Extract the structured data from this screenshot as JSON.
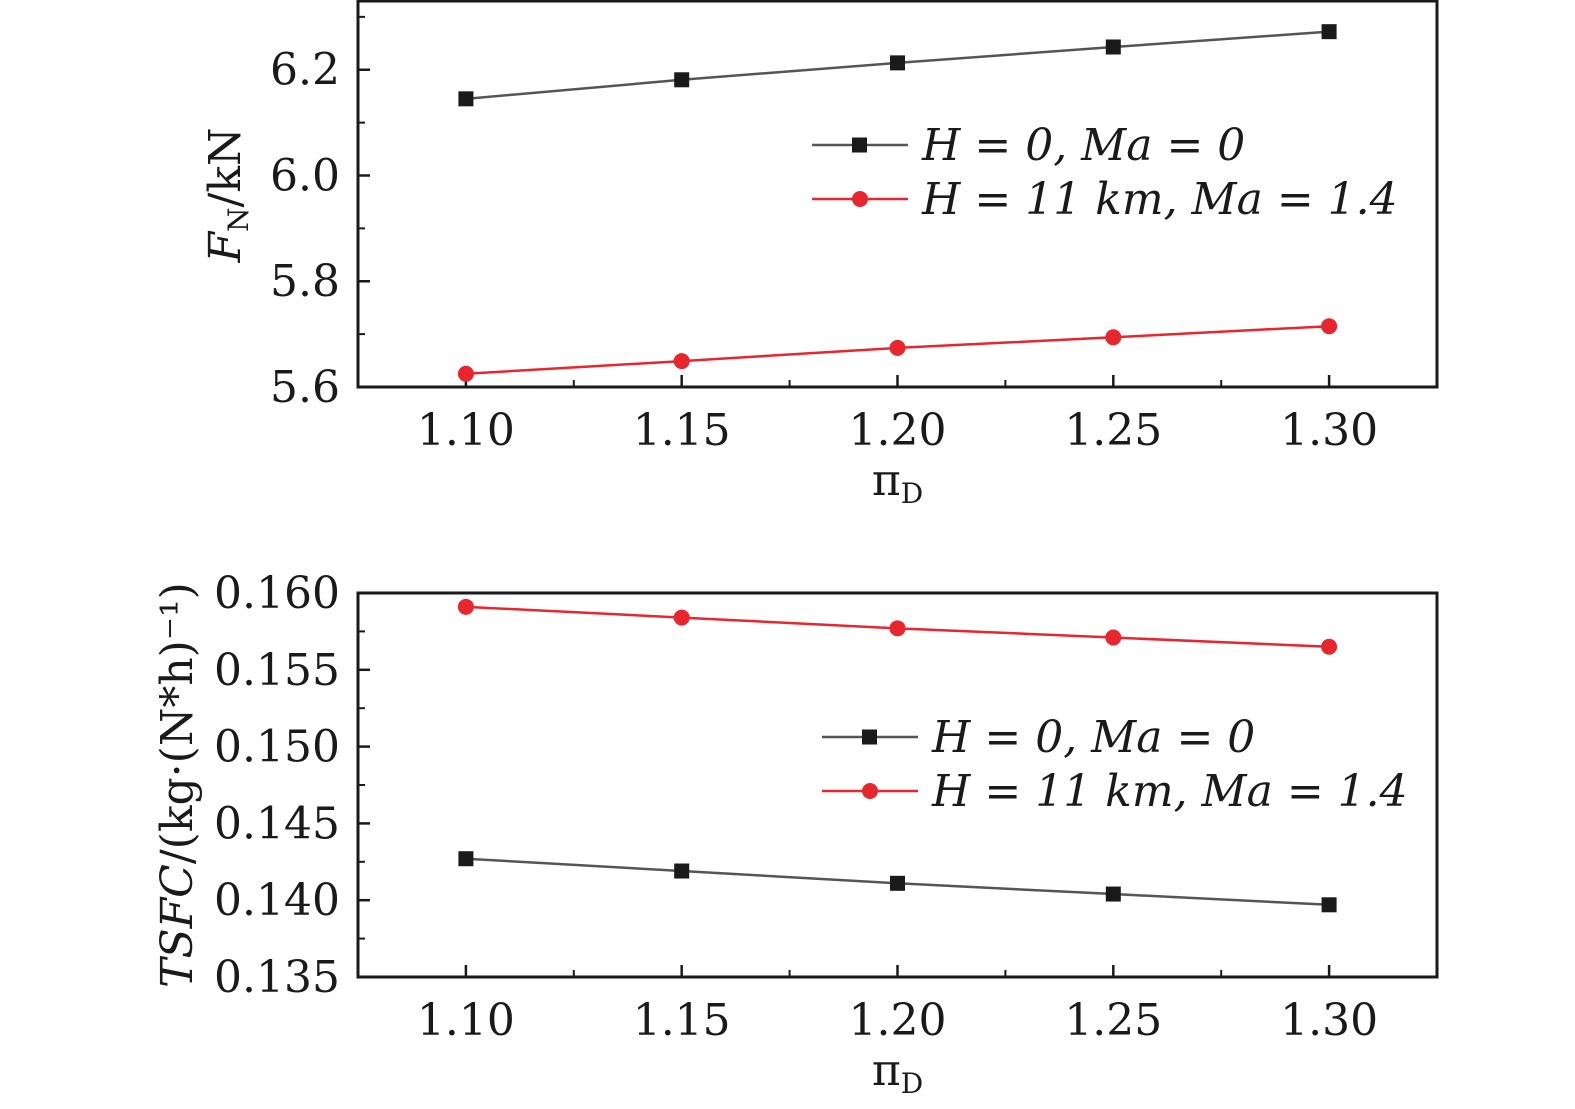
{
  "chart_data": [
    {
      "type": "line",
      "ylabel_main": "F",
      "ylabel_sub": "N",
      "ylabel_unit": "/kN",
      "xlabel_main": "π",
      "xlabel_sub": "D",
      "x": [
        1.1,
        1.15,
        1.2,
        1.25,
        1.3
      ],
      "xlim": [
        1.075,
        1.325
      ],
      "ylim": [
        5.6,
        6.33
      ],
      "xticks": [
        "1.10",
        "1.15",
        "1.20",
        "1.25",
        "1.30"
      ],
      "xtick_values": [
        1.1,
        1.15,
        1.2,
        1.25,
        1.3
      ],
      "yticks": [
        "5.6",
        "5.8",
        "6.0",
        "6.2"
      ],
      "ytick_values": [
        5.6,
        5.8,
        6.0,
        6.2
      ],
      "legend_position": "upper-right",
      "series": [
        {
          "name": "H = 0,  Ma = 0",
          "color": "#555555",
          "marker": "square",
          "values": [
            6.145,
            6.181,
            6.213,
            6.243,
            6.272
          ]
        },
        {
          "name": "H = 11 km,  Ma = 1.4",
          "color": "#e8262e",
          "marker": "circle",
          "values": [
            5.625,
            5.649,
            5.674,
            5.694,
            5.715
          ]
        }
      ]
    },
    {
      "type": "line",
      "ylabel_main": "TSFC",
      "ylabel_unit": "/(kg·(N*h)⁻¹)",
      "xlabel_main": "π",
      "xlabel_sub": "D",
      "x": [
        1.1,
        1.15,
        1.2,
        1.25,
        1.3
      ],
      "xlim": [
        1.075,
        1.325
      ],
      "ylim": [
        0.135,
        0.16
      ],
      "xticks": [
        "1.10",
        "1.15",
        "1.20",
        "1.25",
        "1.30"
      ],
      "xtick_values": [
        1.1,
        1.15,
        1.2,
        1.25,
        1.3
      ],
      "yticks": [
        "0.135",
        "0.140",
        "0.145",
        "0.150",
        "0.155",
        "0.160"
      ],
      "ytick_values": [
        0.135,
        0.14,
        0.145,
        0.15,
        0.155,
        0.16
      ],
      "legend_position": "center-right",
      "series": [
        {
          "name": "H = 0,  Ma = 0",
          "color": "#555555",
          "marker": "square",
          "values": [
            0.1427,
            0.1419,
            0.1411,
            0.1404,
            0.1397
          ]
        },
        {
          "name": "H = 11 km,  Ma = 1.4",
          "color": "#e8262e",
          "marker": "circle",
          "values": [
            0.1591,
            0.1584,
            0.1577,
            0.1571,
            0.1565
          ]
        }
      ]
    }
  ]
}
